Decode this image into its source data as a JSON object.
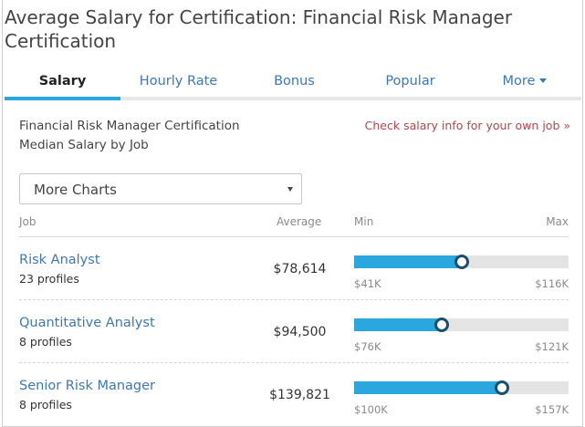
{
  "page_title": "Average Salary for Certification: Financial Risk Manager Certification",
  "tabs": [
    {
      "label": "Salary",
      "active": true
    },
    {
      "label": "Hourly Rate",
      "active": false
    },
    {
      "label": "Bonus",
      "active": false
    },
    {
      "label": "Popular",
      "active": false
    },
    {
      "label": "More",
      "active": false,
      "has_caret": true
    }
  ],
  "subtitle": {
    "line1": "Financial Risk Manager Certification",
    "line2": "Median Salary by Job"
  },
  "own_job_link": "Check salary info for your own job »",
  "charts_select": {
    "value": "More Charts"
  },
  "table": {
    "headers": {
      "job": "Job",
      "average": "Average",
      "min": "Min",
      "max": "Max"
    },
    "rows": [
      {
        "title": "Risk Analyst",
        "profiles": "23 profiles",
        "average": "$78,614",
        "min": "$41K",
        "max": "$116K",
        "average_position": 0.5
      },
      {
        "title": "Quantitative Analyst",
        "profiles": "8 profiles",
        "average": "$94,500",
        "min": "$76K",
        "max": "$121K",
        "average_position": 0.41
      },
      {
        "title": "Senior Risk Manager",
        "profiles": "8 profiles",
        "average": "$139,821",
        "min": "$100K",
        "max": "$157K",
        "average_position": 0.69
      }
    ]
  },
  "colors": {
    "accent": "#2aa7df",
    "link": "#3a78b8",
    "link_alt": "#b3464c",
    "bar_track": "#e4e4e4",
    "dot_border": "#1b4f6b"
  }
}
